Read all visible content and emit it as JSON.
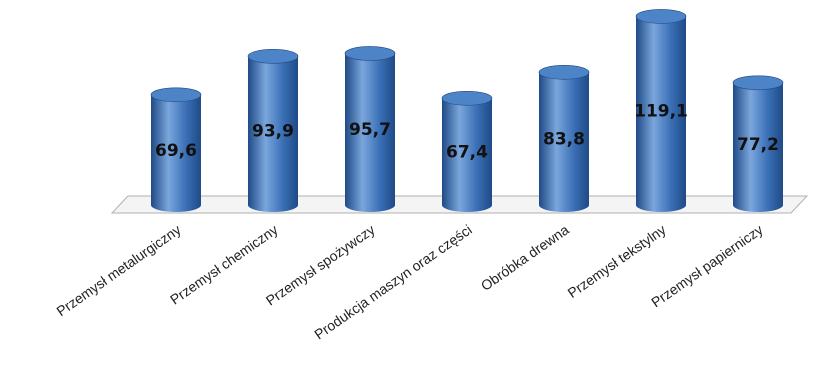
{
  "chart_data": {
    "type": "bar",
    "style": "3d-cylinder",
    "categories": [
      "Przemysł metalurgiczny",
      "Przemysł chemiczny",
      "Przemysł spożywczy",
      "Produkcja maszyn oraz części",
      "Obróbka drewna",
      "Przemysł tekstylny",
      "Przemysł papierniczy"
    ],
    "values": [
      69.6,
      93.9,
      95.7,
      67.4,
      83.8,
      119.1,
      77.2
    ],
    "data_labels": [
      "69,6",
      "93,9",
      "95,7",
      "67,4",
      "83,8",
      "119,1",
      "77,2"
    ],
    "title": "",
    "xlabel": "",
    "ylabel": "",
    "ylim": [
      0,
      120
    ],
    "grid": false,
    "legend": "none",
    "colors": {
      "bar_body": "#3a6fb6",
      "bar_dark": "#1f4a86",
      "bar_light": "#7aa6dc",
      "bar_top": "#4d84c8",
      "floor_fill": "#f4f4f4",
      "floor_stroke": "#b0b0b0"
    }
  }
}
